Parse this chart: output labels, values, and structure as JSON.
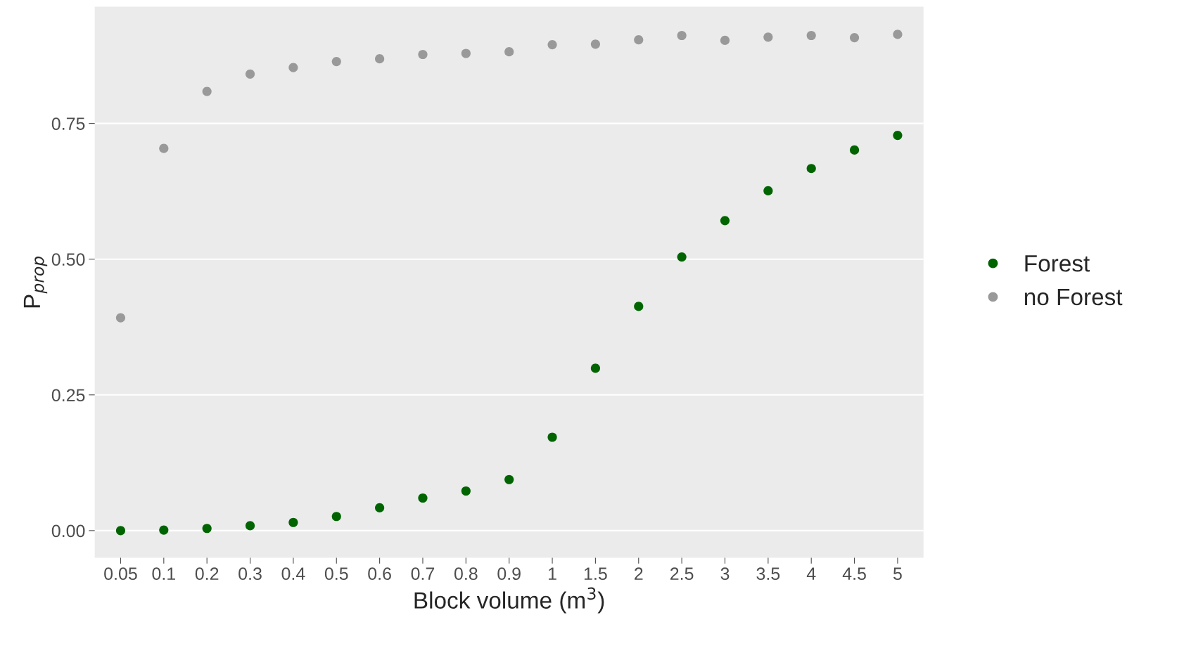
{
  "chart_data": {
    "type": "scatter",
    "xlabel": "Block volume (m$^{3}$)",
    "ylabel": "P$_{prop}$",
    "categories": [
      "0.05",
      "0.1",
      "0.2",
      "0.3",
      "0.4",
      "0.5",
      "0.6",
      "0.7",
      "0.8",
      "0.9",
      "1",
      "1.5",
      "2",
      "2.5",
      "3",
      "3.5",
      "4",
      "4.5",
      "5"
    ],
    "series": [
      {
        "name": "Forest",
        "color": "#006400",
        "values": [
          0.0,
          0.001,
          0.004,
          0.009,
          0.015,
          0.026,
          0.042,
          0.06,
          0.073,
          0.094,
          0.172,
          0.299,
          0.413,
          0.504,
          0.571,
          0.626,
          0.667,
          0.701,
          0.728
        ]
      },
      {
        "name": "no Forest",
        "color": "#999999",
        "values": [
          0.392,
          0.704,
          0.809,
          0.841,
          0.853,
          0.864,
          0.869,
          0.877,
          0.879,
          0.882,
          0.895,
          0.896,
          0.904,
          0.912,
          0.903,
          0.909,
          0.912,
          0.908,
          0.914
        ]
      }
    ],
    "ylim": [
      -0.05,
      0.965
    ],
    "yticks": [
      {
        "value": 0,
        "label": "0.00"
      },
      {
        "value": 0.25,
        "label": "0.25"
      },
      {
        "value": 0.5,
        "label": "0.50"
      },
      {
        "value": 0.75,
        "label": "0.75"
      }
    ],
    "grid": "y",
    "legend": "right",
    "marker": "circle"
  }
}
